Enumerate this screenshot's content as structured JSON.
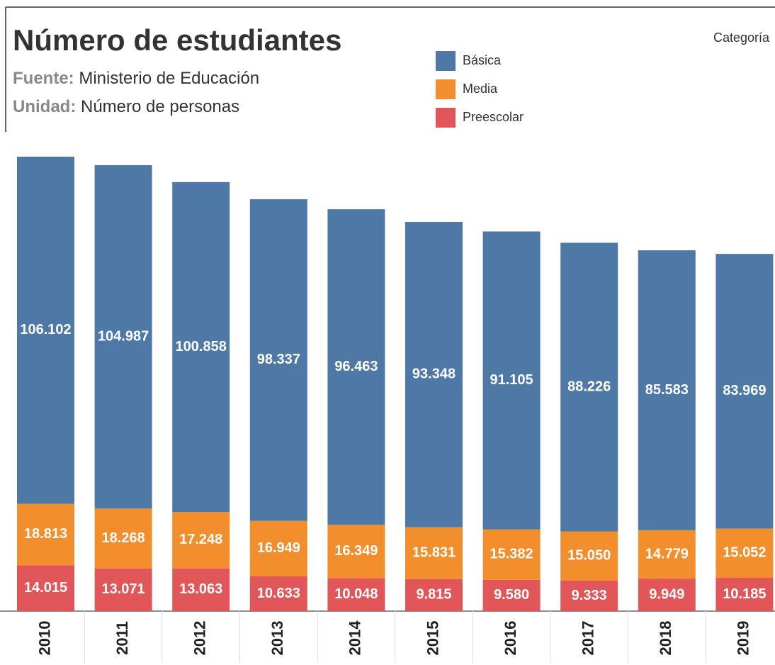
{
  "chart_data": {
    "type": "stacked_bar",
    "title": "Número de estudiantes",
    "source": {
      "label": "Fuente:",
      "text": "Ministerio de Educación"
    },
    "unit": {
      "label": "Unidad:",
      "text": "Número de personas"
    },
    "legend_title": "Categoría",
    "categories": [
      "2010",
      "2011",
      "2012",
      "2013",
      "2014",
      "2015",
      "2016",
      "2017",
      "2018",
      "2019"
    ],
    "series": [
      {
        "name": "Básica",
        "color": "#4e79a7",
        "values": [
          106102,
          104987,
          100858,
          98337,
          96463,
          93348,
          91105,
          88226,
          85583,
          83969
        ],
        "value_labels": [
          "106.102",
          "104.987",
          "100.858",
          "98.337",
          "96.463",
          "93.348",
          "91.105",
          "88.226",
          "85.583",
          "83.969"
        ]
      },
      {
        "name": "Media",
        "color": "#f28e2b",
        "values": [
          18813,
          18268,
          17248,
          16949,
          16349,
          15831,
          15382,
          15050,
          14779,
          15052
        ],
        "value_labels": [
          "18.813",
          "18.268",
          "17.248",
          "16.949",
          "16.349",
          "15.831",
          "15.382",
          "15.050",
          "14.779",
          "15.052"
        ]
      },
      {
        "name": "Preescolar",
        "color": "#e15759",
        "values": [
          14015,
          13071,
          13063,
          10633,
          10048,
          9815,
          9580,
          9333,
          9949,
          10185
        ],
        "value_labels": [
          "14.015",
          "13.071",
          "13.063",
          "10.633",
          "10.048",
          "9.815",
          "9.580",
          "9.333",
          "9.949",
          "10.185"
        ]
      }
    ]
  }
}
